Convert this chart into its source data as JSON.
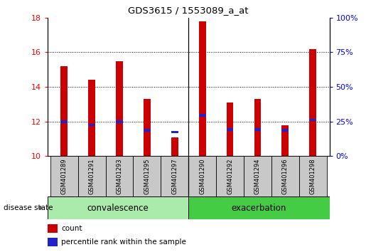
{
  "title": "GDS3615 / 1553089_a_at",
  "samples": [
    "GSM401289",
    "GSM401291",
    "GSM401293",
    "GSM401295",
    "GSM401297",
    "GSM401290",
    "GSM401292",
    "GSM401294",
    "GSM401296",
    "GSM401298"
  ],
  "count_values": [
    15.2,
    14.4,
    15.5,
    13.3,
    11.1,
    17.8,
    13.1,
    13.3,
    11.8,
    16.2
  ],
  "percentile_values": [
    12.0,
    11.8,
    12.0,
    11.5,
    11.4,
    12.35,
    11.55,
    11.55,
    11.5,
    12.1
  ],
  "groups": [
    "convalescence",
    "exacerbation"
  ],
  "group_sizes": [
    5,
    5
  ],
  "ylim": [
    10,
    18
  ],
  "yticks_left": [
    10,
    12,
    14,
    16,
    18
  ],
  "yticks_right": [
    0,
    25,
    50,
    75,
    100
  ],
  "bar_color": "#cc0000",
  "percentile_color": "#2222cc",
  "bg_labels": "#c8c8c8",
  "bg_group_conv": "#aaeaaa",
  "bg_group_exac": "#44cc44",
  "bar_width": 0.25,
  "baseline": 10,
  "divider_idx": 4.5,
  "grid_lines": [
    12,
    14,
    16
  ],
  "figsize": [
    5.15,
    3.54
  ],
  "dpi": 100
}
